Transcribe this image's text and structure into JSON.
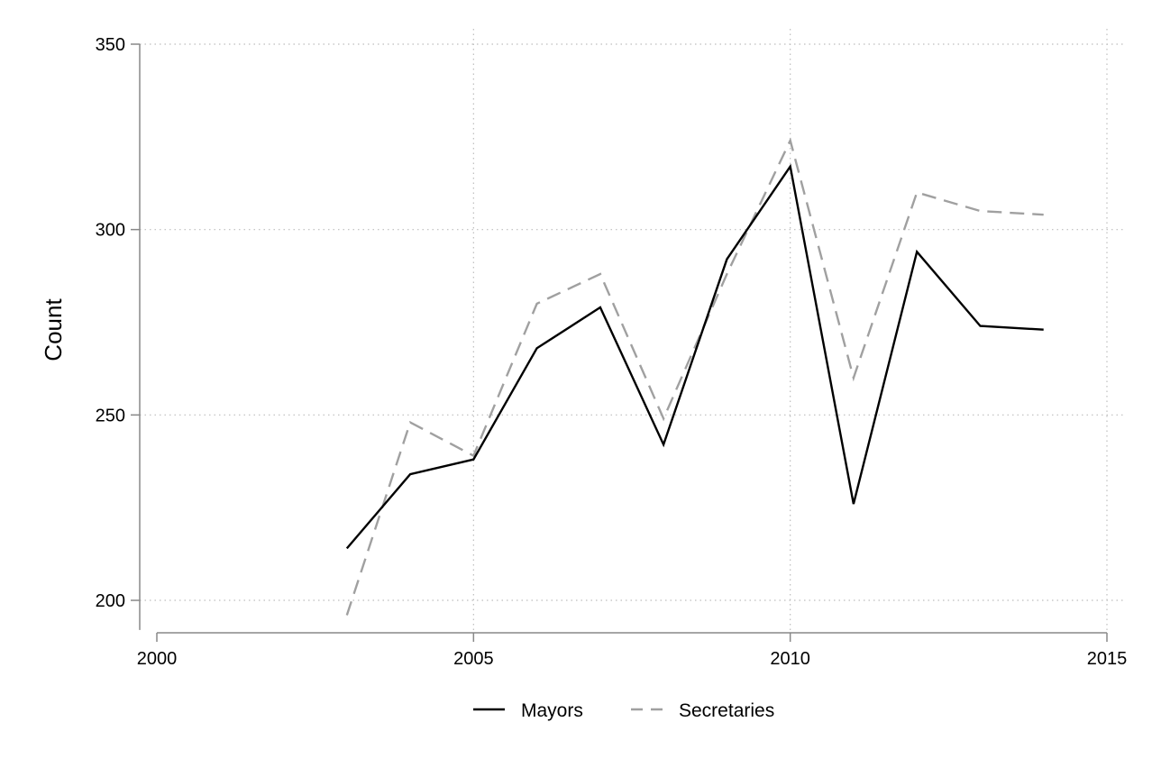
{
  "chart_data": {
    "type": "line",
    "ylabel": "Count",
    "xlim": [
      2000,
      2015
    ],
    "ylim": [
      192,
      350
    ],
    "x_ticks": [
      2000,
      2005,
      2010,
      2015
    ],
    "y_ticks": [
      200,
      250,
      300,
      350
    ],
    "grid": true,
    "legend": {
      "position": "bottom"
    },
    "x": [
      2003,
      2004,
      2005,
      2006,
      2007,
      2008,
      2009,
      2010,
      2011,
      2012,
      2013,
      2014
    ],
    "series": [
      {
        "name": "Mayors",
        "values": [
          214,
          234,
          238,
          268,
          279,
          242,
          292,
          317,
          226,
          294,
          274,
          273
        ],
        "color": "#000000",
        "dash": "solid"
      },
      {
        "name": "Secretaries",
        "values": [
          196,
          248,
          239,
          280,
          288,
          249,
          288,
          324,
          260,
          310,
          305,
          304
        ],
        "color": "#a0a0a0",
        "dash": "dashed"
      }
    ]
  }
}
